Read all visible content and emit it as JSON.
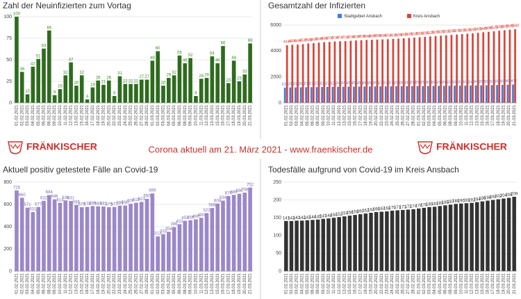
{
  "banner": {
    "logo": "FRÄNKISCHER",
    "text": "Corona aktuell am 21. März 2021 - www.fraenkischer.de"
  },
  "chart_data": [
    {
      "type": "bar",
      "title": "Zahl der Neuinfizierten zum Vortag",
      "categories": [
        "01.02.2021",
        "02.02.2021",
        "03.02.2021",
        "04.02.2021",
        "05.02.2021",
        "06.02.2021",
        "08.02.2021",
        "09.02.2021",
        "10.02.2021",
        "11.02.2021",
        "12.02.2021",
        "13.02.2021",
        "15.02.2021",
        "16.02.2021",
        "17.02.2021",
        "18.02.2021",
        "19.02.2021",
        "20.02.2021",
        "22.02.2021",
        "23.02.2021",
        "24.02.2021",
        "25.02.2021",
        "26.02.2021",
        "27.02.2021",
        "28.02.2021",
        "01.03.2021",
        "02.03.2021",
        "03.03.2021",
        "04.03.2021",
        "05.03.2021",
        "06.03.2021",
        "08.03.2021",
        "09.03.2021",
        "10.03.2021",
        "11.03.2021",
        "12.03.2021",
        "13.03.2021",
        "15.03.2021",
        "16.03.2021",
        "17.03.2021",
        "18.03.2021",
        "19.03.2021",
        "20.03.2021",
        "21.03.2021"
      ],
      "values": [
        100,
        36,
        10,
        42,
        51,
        63,
        84,
        9,
        16,
        32,
        47,
        20,
        32,
        4,
        18,
        26,
        21,
        26,
        8,
        31,
        22,
        22,
        22,
        27,
        27,
        49,
        60,
        20,
        29,
        32,
        55,
        46,
        52,
        8,
        28,
        29,
        54,
        46,
        66,
        23,
        49,
        25,
        33,
        69
      ],
      "color": "#2e6b1e",
      "label_color": "#3a8a22",
      "ylim": [
        0,
        100
      ],
      "yticks": [
        0,
        25,
        50,
        75,
        100
      ],
      "grid": true
    },
    {
      "type": "grouped-bar",
      "title": "Gesamtzahl der Infizierten",
      "categories": [
        "01.02.2021",
        "02.02.2021",
        "03.02.2021",
        "04.02.2021",
        "05.02.2021",
        "06.02.2021",
        "08.02.2021",
        "09.02.2021",
        "10.02.2021",
        "11.02.2021",
        "12.02.2021",
        "13.02.2021",
        "15.02.2021",
        "16.02.2021",
        "17.02.2021",
        "18.02.2021",
        "19.02.2021",
        "20.02.2021",
        "22.02.2021",
        "23.02.2021",
        "24.02.2021",
        "25.02.2021",
        "26.02.2021",
        "27.02.2021",
        "28.02.2021",
        "01.03.2021",
        "02.03.2021",
        "03.03.2021",
        "04.03.2021",
        "05.03.2021",
        "06.03.2021",
        "08.03.2021",
        "09.03.2021",
        "10.03.2021",
        "11.03.2021",
        "12.03.2021",
        "13.03.2021",
        "15.03.2021",
        "16.03.2021",
        "17.03.2021",
        "18.03.2021",
        "19.03.2021",
        "20.03.2021",
        "21.03.2021"
      ],
      "series": [
        {
          "name": "Stadtgebiet Ansbach",
          "color": "#3f7fdc",
          "values": [
            1181,
            1185,
            1190,
            1200,
            1210,
            1215,
            1220,
            1225,
            1230,
            1235,
            1240,
            1245,
            1250,
            1255,
            1258,
            1260,
            1263,
            1266,
            1270,
            1273,
            1276,
            1280,
            1283,
            1286,
            1290,
            1293,
            1296,
            1300,
            1305,
            1310,
            1315,
            1320,
            1325,
            1330,
            1335,
            1340,
            1345,
            1350,
            1360,
            1370,
            1380,
            1390,
            1400,
            1412
          ]
        },
        {
          "name": "Kreis Ansbach",
          "color": "#d9453a",
          "values": [
            4444,
            4480,
            4490,
            4532,
            4583,
            4600,
            4646,
            4680,
            4700,
            4730,
            4747,
            4760,
            4790,
            4810,
            4830,
            4848,
            4860,
            4880,
            4895,
            4910,
            4930,
            4955,
            4980,
            5005,
            5030,
            5060,
            5090,
            5120,
            5150,
            5180,
            5210,
            5240,
            5270,
            5300,
            5330,
            5360,
            5400,
            5440,
            5480,
            5520,
            5560,
            5600,
            5640,
            5680
          ]
        }
      ],
      "legend": "top",
      "ylim": [
        0,
        6000
      ],
      "yticks": [
        0,
        2000,
        4000,
        6000
      ],
      "grid": true
    },
    {
      "type": "bar",
      "title": "Aktuell positiv getestete Fälle an Covid-19",
      "categories": [
        "01.02.2021",
        "02.02.2021",
        "03.02.2021",
        "04.02.2021",
        "05.02.2021",
        "06.02.2021",
        "08.02.2021",
        "09.02.2021",
        "10.02.2021",
        "11.02.2021",
        "12.02.2021",
        "13.02.2021",
        "15.02.2021",
        "16.02.2021",
        "17.02.2021",
        "18.02.2021",
        "19.02.2021",
        "20.02.2021",
        "22.02.2021",
        "23.02.2021",
        "24.02.2021",
        "25.02.2021",
        "26.02.2021",
        "27.02.2021",
        "28.02.2021",
        "01.03.2021",
        "02.03.2021",
        "03.03.2021",
        "04.03.2021",
        "05.03.2021",
        "06.03.2021",
        "08.03.2021",
        "09.03.2021",
        "10.03.2021",
        "11.03.2021",
        "12.03.2021",
        "13.03.2021",
        "15.03.2021",
        "16.03.2021",
        "17.03.2021",
        "18.03.2021",
        "19.03.2021",
        "20.03.2021",
        "21.03.2021"
      ],
      "values": [
        726,
        660,
        571,
        531,
        577,
        632,
        684,
        646,
        614,
        636,
        631,
        595,
        575,
        578,
        586,
        583,
        581,
        575,
        577,
        589,
        590,
        606,
        615,
        623,
        650,
        699,
        313,
        333,
        354,
        396,
        422,
        453,
        458,
        466,
        480,
        522,
        568,
        608,
        634,
        676,
        686,
        696,
        706,
        752
      ],
      "color": "#9b87c9",
      "label_color": "#7d6bb0",
      "ylim": [
        0,
        800
      ],
      "yticks": [
        0,
        200,
        400,
        600,
        800
      ],
      "grid": true
    },
    {
      "type": "bar",
      "title": "Todesfälle aufgrund von Covid-19 im Kreis Ansbach",
      "categories": [
        "01.02.2021",
        "02.02.2021",
        "03.02.2021",
        "04.02.2021",
        "05.02.2021",
        "06.02.2021",
        "08.02.2021",
        "09.02.2021",
        "10.02.2021",
        "11.02.2021",
        "12.02.2021",
        "13.02.2021",
        "15.02.2021",
        "16.02.2021",
        "17.02.2021",
        "18.02.2021",
        "19.02.2021",
        "20.02.2021",
        "22.02.2021",
        "23.02.2021",
        "24.02.2021",
        "25.02.2021",
        "26.02.2021",
        "27.02.2021",
        "28.02.2021",
        "01.03.2021",
        "02.03.2021",
        "03.03.2021",
        "04.03.2021",
        "05.03.2021",
        "06.03.2021",
        "08.03.2021",
        "09.03.2021",
        "10.03.2021",
        "11.03.2021",
        "12.03.2021",
        "13.03.2021",
        "15.03.2021",
        "16.03.2021",
        "17.03.2021",
        "18.03.2021",
        "19.03.2021",
        "20.03.2021",
        "21.03.2021"
      ],
      "values": [
        141,
        141,
        142,
        142,
        143,
        144,
        145,
        147,
        148,
        150,
        152,
        154,
        156,
        158,
        160,
        162,
        164,
        166,
        167,
        168,
        170,
        171,
        172,
        173,
        174,
        176,
        178,
        180,
        181,
        183,
        185,
        187,
        189,
        190,
        191,
        192,
        194,
        196,
        198,
        200,
        202,
        204,
        206,
        209
      ],
      "color": "#333333",
      "label_color": "#333333",
      "ylim": [
        0,
        250
      ],
      "yticks": [
        0,
        50,
        100,
        150,
        200,
        250
      ],
      "grid": true
    }
  ]
}
